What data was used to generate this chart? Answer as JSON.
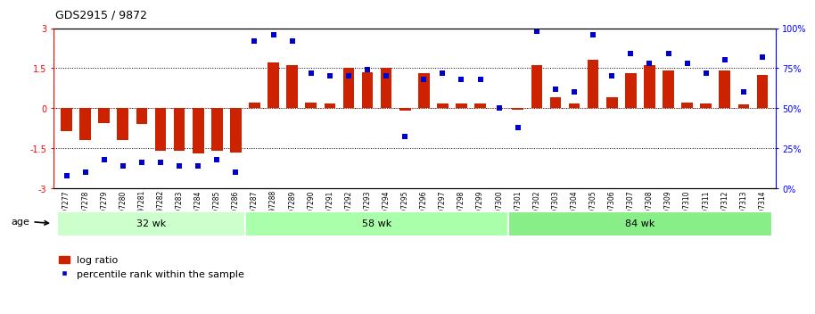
{
  "title": "GDS2915 / 9872",
  "samples": [
    "GSM97277",
    "GSM97278",
    "GSM97279",
    "GSM97280",
    "GSM97281",
    "GSM97282",
    "GSM97283",
    "GSM97284",
    "GSM97285",
    "GSM97286",
    "GSM97287",
    "GSM97288",
    "GSM97289",
    "GSM97290",
    "GSM97291",
    "GSM97292",
    "GSM97293",
    "GSM97294",
    "GSM97295",
    "GSM97296",
    "GSM97297",
    "GSM97298",
    "GSM97299",
    "GSM97300",
    "GSM97301",
    "GSM97302",
    "GSM97303",
    "GSM97304",
    "GSM97305",
    "GSM97306",
    "GSM97307",
    "GSM97308",
    "GSM97309",
    "GSM97310",
    "GSM97311",
    "GSM97312",
    "GSM97313",
    "GSM97314"
  ],
  "log_ratio": [
    -0.85,
    -1.2,
    -0.55,
    -1.2,
    -0.6,
    -1.6,
    -1.6,
    -1.7,
    -1.6,
    -1.65,
    0.22,
    1.7,
    1.6,
    0.22,
    0.18,
    1.5,
    1.35,
    1.5,
    -0.08,
    1.3,
    0.18,
    0.18,
    0.18,
    0.0,
    -0.05,
    1.6,
    0.4,
    0.18,
    1.8,
    0.4,
    1.3,
    1.6,
    1.4,
    0.22,
    0.18,
    1.4,
    0.15,
    1.25
  ],
  "percentile": [
    8,
    10,
    18,
    14,
    16,
    16,
    14,
    14,
    18,
    10,
    92,
    96,
    92,
    72,
    70,
    70,
    74,
    70,
    32,
    68,
    72,
    68,
    68,
    50,
    38,
    98,
    62,
    60,
    96,
    70,
    84,
    78,
    84,
    78,
    72,
    80,
    60,
    82
  ],
  "groups": [
    {
      "label": "32 wk",
      "start": 0,
      "end": 10,
      "color": "#ccffcc"
    },
    {
      "label": "58 wk",
      "start": 10,
      "end": 24,
      "color": "#aaffaa"
    },
    {
      "label": "84 wk",
      "start": 24,
      "end": 38,
      "color": "#88ee88"
    }
  ],
  "bar_color": "#cc2200",
  "dot_color": "#0000cc",
  "ylim": [
    -3,
    3
  ],
  "y2lim": [
    0,
    100
  ],
  "dotted_lines": [
    -1.5,
    0.0,
    1.5
  ],
  "legend_bar": "log ratio",
  "legend_dot": "percentile rank within the sample",
  "age_label": "age"
}
